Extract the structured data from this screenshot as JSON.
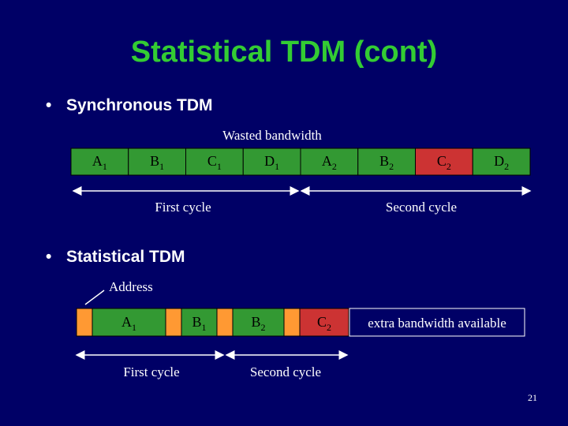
{
  "title": "Statistical TDM (cont)",
  "bullets": [
    "Synchronous TDM",
    "Statistical TDM"
  ],
  "sync": {
    "annotation": "Wasted bandwidth",
    "slots": [
      {
        "letter": "A",
        "sub": "1"
      },
      {
        "letter": "B",
        "sub": "1"
      },
      {
        "letter": "C",
        "sub": "1"
      },
      {
        "letter": "D",
        "sub": "1"
      },
      {
        "letter": "A",
        "sub": "2"
      },
      {
        "letter": "B",
        "sub": "2"
      },
      {
        "letter": "C",
        "sub": "2"
      },
      {
        "letter": "D",
        "sub": "2"
      }
    ],
    "cycles": [
      "First cycle",
      "Second cycle"
    ]
  },
  "stat": {
    "annotation": "Address",
    "slots": [
      {
        "letter": "A",
        "sub": "1"
      },
      {
        "letter": "B",
        "sub": "1"
      },
      {
        "letter": "B",
        "sub": "2"
      },
      {
        "letter": "C",
        "sub": "2"
      }
    ],
    "extra": "extra bandwidth available",
    "cycles": [
      "First cycle",
      "Second cycle"
    ]
  },
  "page_number": "21"
}
